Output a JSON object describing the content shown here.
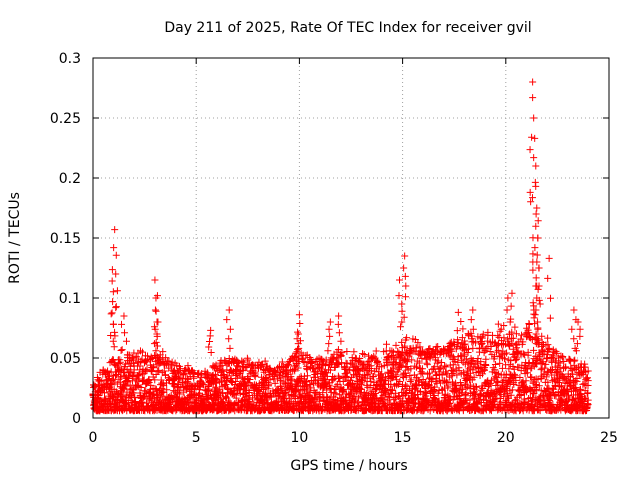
{
  "chart_data": {
    "type": "scatter",
    "title": "Day 211 of 2025, Rate Of TEC Index for receiver gvil",
    "xlabel": "GPS time / hours",
    "ylabel": "ROTI / TECUs",
    "xlim": [
      0,
      25
    ],
    "ylim": [
      0,
      0.3
    ],
    "xticks": [
      0,
      5,
      10,
      15,
      20,
      25
    ],
    "yticks": [
      0,
      0.05,
      0.1,
      0.15,
      0.2,
      0.25,
      0.3
    ],
    "grid": true,
    "marker": "+",
    "color": "#ff0000",
    "series": [
      {
        "name": "ROTI",
        "baseline_envelope": {
          "x": [
            0,
            1,
            2,
            3,
            4,
            5,
            6,
            7,
            8,
            9,
            10,
            11,
            12,
            13,
            14,
            15,
            16,
            17,
            18,
            19,
            20,
            21,
            22,
            23,
            24
          ],
          "y_max": [
            0.032,
            0.05,
            0.055,
            0.055,
            0.045,
            0.04,
            0.045,
            0.05,
            0.045,
            0.045,
            0.055,
            0.05,
            0.055,
            0.05,
            0.055,
            0.06,
            0.06,
            0.06,
            0.07,
            0.075,
            0.07,
            0.075,
            0.06,
            0.05,
            0.045
          ]
        },
        "peaks": [
          {
            "x": 1.05,
            "y": 0.157
          },
          {
            "x": 1.0,
            "y": 0.142
          },
          {
            "x": 1.1,
            "y": 0.12
          },
          {
            "x": 0.95,
            "y": 0.097
          },
          {
            "x": 1.5,
            "y": 0.085
          },
          {
            "x": 3.0,
            "y": 0.115
          },
          {
            "x": 3.05,
            "y": 0.1
          },
          {
            "x": 3.1,
            "y": 0.08
          },
          {
            "x": 5.7,
            "y": 0.073
          },
          {
            "x": 6.6,
            "y": 0.09
          },
          {
            "x": 10.0,
            "y": 0.086
          },
          {
            "x": 9.95,
            "y": 0.07
          },
          {
            "x": 11.5,
            "y": 0.08
          },
          {
            "x": 11.9,
            "y": 0.085
          },
          {
            "x": 14.85,
            "y": 0.115
          },
          {
            "x": 15.1,
            "y": 0.135
          },
          {
            "x": 15.05,
            "y": 0.125
          },
          {
            "x": 17.7,
            "y": 0.088
          },
          {
            "x": 18.4,
            "y": 0.09
          },
          {
            "x": 20.1,
            "y": 0.1
          },
          {
            "x": 20.3,
            "y": 0.104
          },
          {
            "x": 21.3,
            "y": 0.28
          },
          {
            "x": 21.3,
            "y": 0.267
          },
          {
            "x": 21.35,
            "y": 0.25
          },
          {
            "x": 21.4,
            "y": 0.233
          },
          {
            "x": 21.35,
            "y": 0.217
          },
          {
            "x": 21.45,
            "y": 0.193
          },
          {
            "x": 21.5,
            "y": 0.175
          },
          {
            "x": 21.55,
            "y": 0.15
          },
          {
            "x": 21.6,
            "y": 0.125
          },
          {
            "x": 21.5,
            "y": 0.11
          },
          {
            "x": 22.1,
            "y": 0.133
          },
          {
            "x": 23.3,
            "y": 0.09
          },
          {
            "x": 23.5,
            "y": 0.08
          }
        ]
      }
    ]
  }
}
